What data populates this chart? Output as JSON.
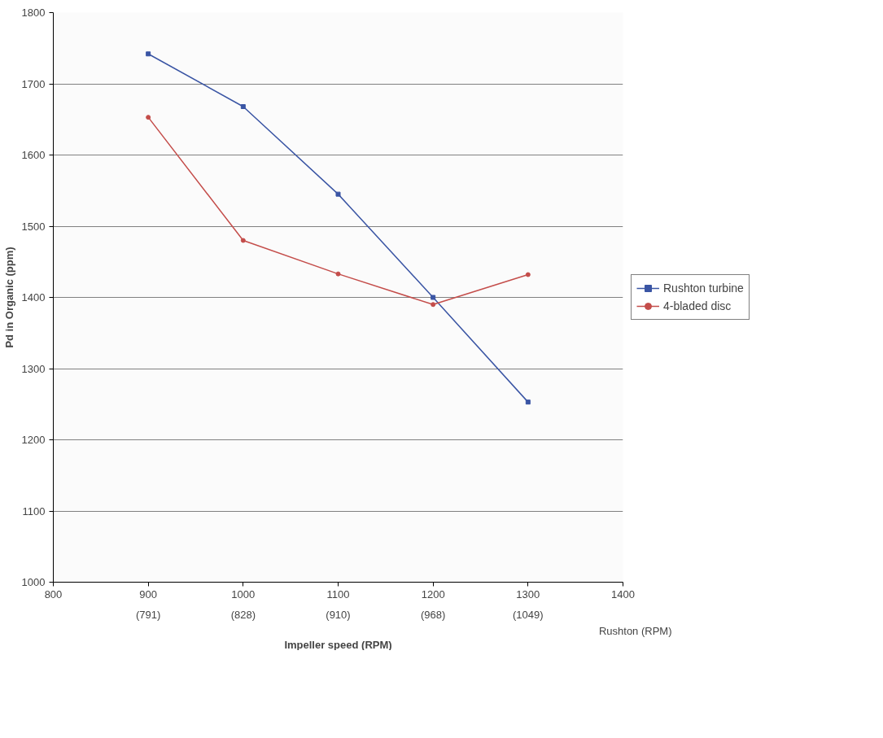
{
  "chart_data": {
    "type": "line",
    "xlabel": "Impeller speed (RPM)",
    "ylabel": "Pd in Organic (ppm)",
    "x": [
      900,
      1000,
      1100,
      1200,
      1300
    ],
    "series": [
      {
        "name": "Rushton turbine",
        "color": "#3a55a4",
        "marker": "square",
        "values": [
          1742,
          1668,
          1545,
          1400,
          1253
        ]
      },
      {
        "name": "4-bladed disc",
        "color": "#c44d4a",
        "marker": "circle",
        "values": [
          1653,
          1480,
          1433,
          1390,
          1432
        ]
      }
    ],
    "xlim": [
      800,
      1400
    ],
    "xticks": [
      800,
      900,
      1000,
      1100,
      1200,
      1300,
      1400
    ],
    "ylim": [
      1000,
      1800
    ],
    "yticks": [
      1000,
      1100,
      1200,
      1300,
      1400,
      1500,
      1600,
      1700,
      1800
    ],
    "annotations": [
      "(791)",
      "(828)",
      "(910)",
      "(968)",
      "(1049)",
      "Rushton (RPM)"
    ],
    "grid": "y",
    "legend": "right",
    "line_style": "solid"
  }
}
